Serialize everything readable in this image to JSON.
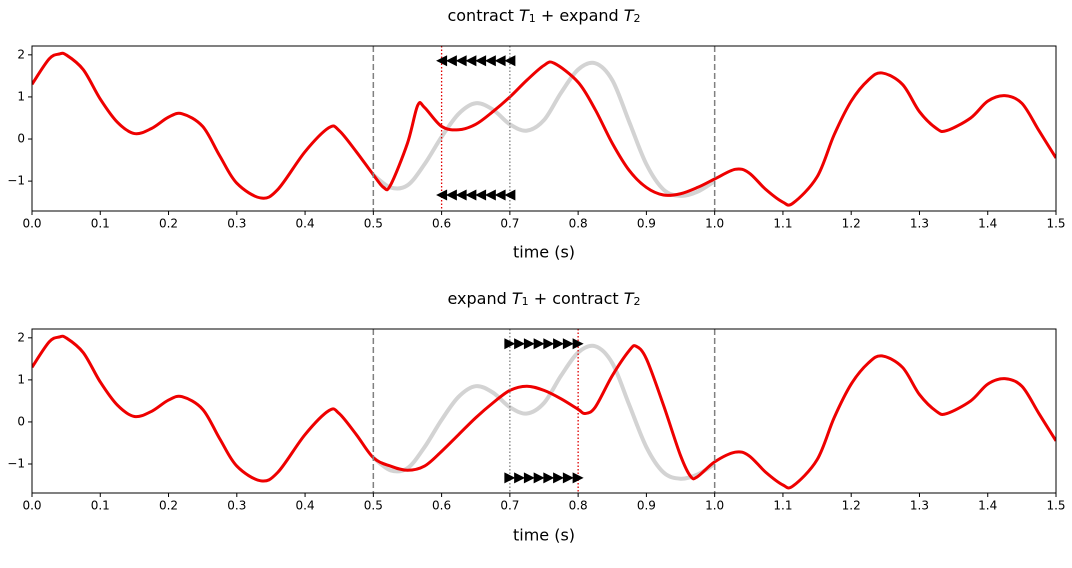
{
  "chart_data": [
    {
      "type": "line",
      "title": [
        {
          "text": "contract "
        },
        {
          "text": "T",
          "italic": true
        },
        {
          "text": "1",
          "sub": true
        },
        {
          "text": " + expand "
        },
        {
          "text": "T",
          "italic": true
        },
        {
          "text": "2",
          "sub": true
        }
      ],
      "xlabel": "time (s)",
      "xlim": [
        0,
        1.5
      ],
      "ylim": [
        -1.71,
        2.21
      ],
      "xticks": [
        {
          "value": 0,
          "label": "0.0"
        },
        0.1,
        0.2,
        0.3,
        0.4,
        0.5,
        0.6,
        0.7,
        0.8,
        0.9,
        {
          "value": 1,
          "label": "1.0"
        },
        1.1,
        1.2,
        1.3,
        1.4,
        1.5
      ],
      "yticks": [
        {
          "value": -1,
          "label": "−1"
        },
        0,
        1,
        2
      ],
      "vlines": [
        {
          "x": 0.5,
          "color": "#808080",
          "style": "dashed"
        },
        {
          "x": 1.0,
          "color": "#808080",
          "style": "dashed"
        },
        {
          "x": 0.6,
          "color": "#e00000",
          "style": "dotted"
        },
        {
          "x": 0.7,
          "color": "#808080",
          "style": "dotted"
        }
      ],
      "series": [
        {
          "color": "#d3d3d3",
          "x": [
            0.5,
            0.525,
            0.55,
            0.575,
            0.6,
            0.625,
            0.65,
            0.675,
            0.7,
            0.725,
            0.75,
            0.775,
            0.8,
            0.825,
            0.85,
            0.875,
            0.9,
            0.925,
            0.95,
            0.975,
            1.0
          ],
          "values": [
            -0.85,
            -1.15,
            -1.1,
            -0.6,
            0.05,
            0.6,
            0.85,
            0.7,
            0.35,
            0.2,
            0.45,
            1.1,
            1.65,
            1.8,
            1.4,
            0.4,
            -0.6,
            -1.2,
            -1.35,
            -1.25,
            -1.0
          ]
        },
        {
          "color": "#ee0000",
          "x": [
            0,
            0.025,
            0.04,
            0.05,
            0.075,
            0.1,
            0.125,
            0.15,
            0.175,
            0.2,
            0.22,
            0.25,
            0.275,
            0.3,
            0.335,
            0.36,
            0.4,
            0.435,
            0.45,
            0.475,
            0.5,
            0.515,
            0.525,
            0.55,
            0.565,
            0.575,
            0.6,
            0.625,
            0.65,
            0.675,
            0.7,
            0.725,
            0.75,
            0.765,
            0.8,
            0.825,
            0.85,
            0.875,
            0.9,
            0.925,
            0.95,
            0.975,
            1.0,
            1.03,
            1.05,
            1.075,
            1.1,
            1.115,
            1.15,
            1.175,
            1.2,
            1.225,
            1.245,
            1.275,
            1.3,
            1.325,
            1.34,
            1.375,
            1.4,
            1.425,
            1.45,
            1.475,
            1.5
          ],
          "values": [
            1.3,
            1.9,
            2.02,
            2.0,
            1.65,
            0.95,
            0.4,
            0.13,
            0.25,
            0.52,
            0.6,
            0.3,
            -0.4,
            -1.05,
            -1.4,
            -1.2,
            -0.3,
            0.27,
            0.2,
            -0.3,
            -0.85,
            -1.15,
            -1.1,
            -0.1,
            0.8,
            0.75,
            0.3,
            0.22,
            0.35,
            0.65,
            1.0,
            1.4,
            1.75,
            1.8,
            1.35,
            0.7,
            -0.1,
            -0.75,
            -1.15,
            -1.33,
            -1.3,
            -1.15,
            -0.95,
            -0.72,
            -0.8,
            -1.2,
            -1.5,
            -1.52,
            -0.9,
            0.1,
            0.9,
            1.4,
            1.57,
            1.3,
            0.65,
            0.25,
            0.2,
            0.5,
            0.9,
            1.03,
            0.85,
            0.2,
            -0.45
          ]
        },
        {
          "type": "marker",
          "marker": "left",
          "color": "#000000",
          "x": [
            0.6,
            0.6143,
            0.6286,
            0.6429,
            0.6571,
            0.6714,
            0.6857,
            0.7
          ],
          "values": [
            1.86,
            1.86,
            1.86,
            1.86,
            1.86,
            1.86,
            1.86,
            1.86
          ]
        },
        {
          "type": "marker",
          "marker": "left",
          "color": "#000000",
          "x": [
            0.6,
            0.6143,
            0.6286,
            0.6429,
            0.6571,
            0.6714,
            0.6857,
            0.7
          ],
          "values": [
            -1.33,
            -1.33,
            -1.33,
            -1.33,
            -1.33,
            -1.33,
            -1.33,
            -1.33
          ]
        }
      ]
    },
    {
      "type": "line",
      "title": [
        {
          "text": "expand "
        },
        {
          "text": "T",
          "italic": true
        },
        {
          "text": "1",
          "sub": true
        },
        {
          "text": " + contract "
        },
        {
          "text": "T",
          "italic": true
        },
        {
          "text": "2",
          "sub": true
        }
      ],
      "xlabel": "time (s)",
      "xlim": [
        0,
        1.5
      ],
      "ylim": [
        -1.69,
        2.21
      ],
      "xticks": [
        {
          "value": 0,
          "label": "0.0"
        },
        0.1,
        0.2,
        0.3,
        0.4,
        0.5,
        0.6,
        0.7,
        0.8,
        0.9,
        {
          "value": 1,
          "label": "1.0"
        },
        1.1,
        1.2,
        1.3,
        1.4,
        1.5
      ],
      "yticks": [
        {
          "value": -1,
          "label": "−1"
        },
        0,
        1,
        2
      ],
      "vlines": [
        {
          "x": 0.5,
          "color": "#808080",
          "style": "dashed"
        },
        {
          "x": 1.0,
          "color": "#808080",
          "style": "dashed"
        },
        {
          "x": 0.7,
          "color": "#808080",
          "style": "dotted"
        },
        {
          "x": 0.8,
          "color": "#e00000",
          "style": "dotted"
        }
      ],
      "series": [
        {
          "color": "#d3d3d3",
          "x": [
            0.5,
            0.525,
            0.55,
            0.575,
            0.6,
            0.625,
            0.65,
            0.675,
            0.7,
            0.725,
            0.75,
            0.775,
            0.8,
            0.825,
            0.85,
            0.875,
            0.9,
            0.925,
            0.95,
            0.975,
            1.0
          ],
          "values": [
            -0.85,
            -1.15,
            -1.1,
            -0.6,
            0.05,
            0.6,
            0.85,
            0.7,
            0.35,
            0.2,
            0.45,
            1.1,
            1.65,
            1.8,
            1.4,
            0.4,
            -0.6,
            -1.2,
            -1.35,
            -1.25,
            -1.0
          ]
        },
        {
          "color": "#ee0000",
          "x": [
            0,
            0.025,
            0.04,
            0.05,
            0.075,
            0.1,
            0.125,
            0.15,
            0.175,
            0.2,
            0.22,
            0.25,
            0.275,
            0.3,
            0.335,
            0.36,
            0.4,
            0.435,
            0.45,
            0.475,
            0.5,
            0.525,
            0.55,
            0.575,
            0.6,
            0.625,
            0.65,
            0.675,
            0.7,
            0.725,
            0.75,
            0.775,
            0.8,
            0.81,
            0.825,
            0.85,
            0.875,
            0.885,
            0.9,
            0.925,
            0.95,
            0.965,
            0.975,
            1.0,
            1.03,
            1.05,
            1.075,
            1.1,
            1.115,
            1.15,
            1.175,
            1.2,
            1.225,
            1.245,
            1.275,
            1.3,
            1.325,
            1.34,
            1.375,
            1.4,
            1.425,
            1.45,
            1.475,
            1.5
          ],
          "values": [
            1.3,
            1.9,
            2.02,
            2.0,
            1.65,
            0.95,
            0.4,
            0.13,
            0.25,
            0.52,
            0.6,
            0.3,
            -0.4,
            -1.05,
            -1.4,
            -1.2,
            -0.3,
            0.27,
            0.2,
            -0.3,
            -0.85,
            -1.05,
            -1.15,
            -1.05,
            -0.7,
            -0.3,
            0.1,
            0.45,
            0.75,
            0.85,
            0.75,
            0.55,
            0.3,
            0.2,
            0.35,
            1.1,
            1.7,
            1.8,
            1.5,
            0.4,
            -0.8,
            -1.3,
            -1.3,
            -0.95,
            -0.72,
            -0.8,
            -1.2,
            -1.5,
            -1.52,
            -0.9,
            0.1,
            0.9,
            1.4,
            1.57,
            1.3,
            0.65,
            0.25,
            0.2,
            0.5,
            0.9,
            1.03,
            0.85,
            0.2,
            -0.45
          ]
        },
        {
          "type": "marker",
          "marker": "right",
          "color": "#000000",
          "x": [
            0.7,
            0.7143,
            0.7286,
            0.7429,
            0.7571,
            0.7714,
            0.7857,
            0.8
          ],
          "values": [
            1.86,
            1.86,
            1.86,
            1.86,
            1.86,
            1.86,
            1.86,
            1.86
          ]
        },
        {
          "type": "marker",
          "marker": "right",
          "color": "#000000",
          "x": [
            0.7,
            0.7143,
            0.7286,
            0.7429,
            0.7571,
            0.7714,
            0.7857,
            0.8
          ],
          "values": [
            -1.33,
            -1.33,
            -1.33,
            -1.33,
            -1.33,
            -1.33,
            -1.33,
            -1.33
          ]
        }
      ]
    }
  ]
}
